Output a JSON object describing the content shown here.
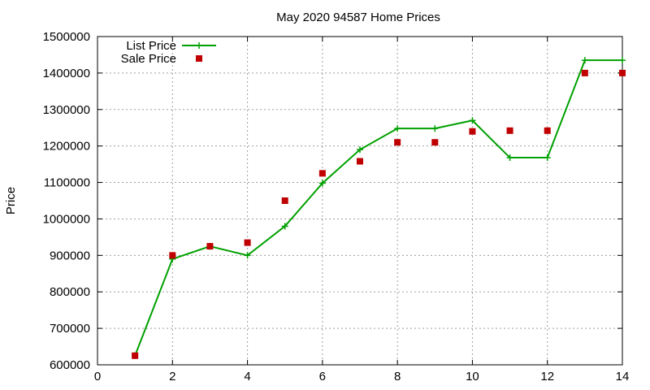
{
  "chart_data": {
    "type": "line",
    "title": "May 2020 94587 Home Prices",
    "xlabel": "",
    "ylabel": "Price",
    "xlim": [
      0,
      14
    ],
    "ylim": [
      600000,
      1500000
    ],
    "x_ticks": [
      0,
      2,
      4,
      6,
      8,
      10,
      12,
      14
    ],
    "y_ticks": [
      600000,
      700000,
      800000,
      900000,
      1000000,
      1100000,
      1200000,
      1300000,
      1400000,
      1500000
    ],
    "grid": true,
    "legend_position": "top-left",
    "series": [
      {
        "name": "List Price",
        "style": "line-with-cross-markers",
        "color": "#00a000",
        "x": [
          1,
          2,
          3,
          4,
          5,
          6,
          7,
          8,
          9,
          10,
          11,
          12,
          13,
          14
        ],
        "values": [
          625000,
          890000,
          925000,
          900000,
          980000,
          1098000,
          1190000,
          1248000,
          1248000,
          1270000,
          1168000,
          1168000,
          1435000,
          1435000
        ]
      },
      {
        "name": "Sale Price",
        "style": "square-points",
        "color": "#c00000",
        "x": [
          1,
          2,
          3,
          4,
          5,
          6,
          7,
          8,
          9,
          10,
          11,
          12,
          13,
          14
        ],
        "values": [
          625000,
          900000,
          925000,
          935000,
          1050000,
          1125000,
          1158000,
          1210000,
          1210000,
          1240000,
          1242000,
          1242000,
          1400000,
          1400000
        ]
      }
    ]
  }
}
